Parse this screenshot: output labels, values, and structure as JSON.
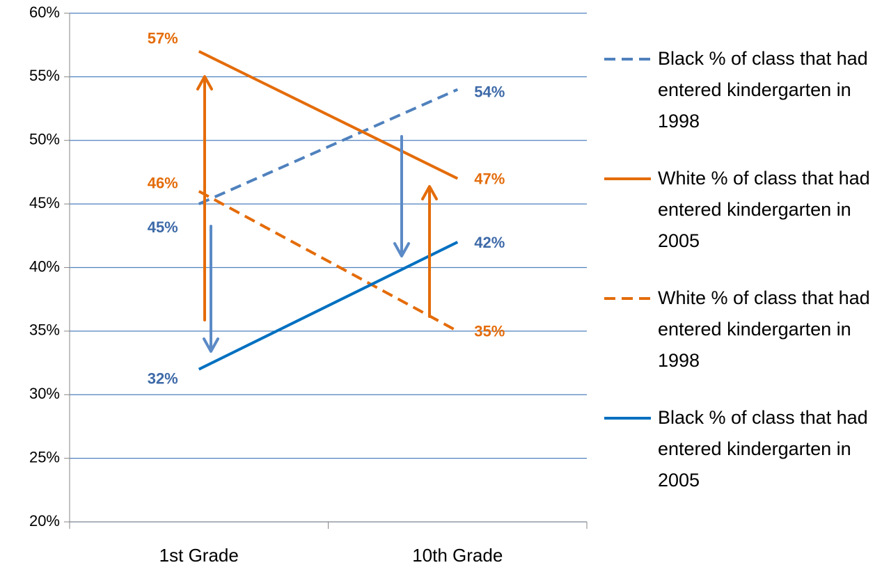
{
  "chart_data": {
    "type": "line",
    "categories": [
      "1st Grade",
      "10th Grade"
    ],
    "series": [
      {
        "name": "Black % of class that had entered kindergarten in 1998",
        "color": "#4f81bd",
        "dash": true,
        "values": [
          45,
          54
        ],
        "value_labels": [
          "45%",
          "54%"
        ],
        "label_color": "#3e6aa8"
      },
      {
        "name": "White % of class that had entered kindergarten in 2005",
        "color": "#e46c0a",
        "dash": false,
        "values": [
          57,
          47
        ],
        "value_labels": [
          "57%",
          "47%"
        ],
        "label_color": "#e46c0a"
      },
      {
        "name": "White % of class that had entered kindergarten in 1998",
        "color": "#e46c0a",
        "dash": true,
        "values": [
          46,
          35
        ],
        "value_labels": [
          "46%",
          "35%"
        ],
        "label_color": "#e46c0a"
      },
      {
        "name": "Black % of class that had entered kindergarten in 2005",
        "color": "#0070c0",
        "dash": false,
        "values": [
          32,
          42
        ],
        "value_labels": [
          "32%",
          "42%"
        ],
        "label_color": "#3e6aa8"
      }
    ],
    "ylim": [
      20,
      60
    ],
    "yticks": [
      {
        "value": 20,
        "label": "20%"
      },
      {
        "value": 25,
        "label": "25%"
      },
      {
        "value": 30,
        "label": "30%"
      },
      {
        "value": 35,
        "label": "35%"
      },
      {
        "value": 40,
        "label": "40%"
      },
      {
        "value": 45,
        "label": "45%"
      },
      {
        "value": 50,
        "label": "50%"
      },
      {
        "value": 55,
        "label": "55%"
      },
      {
        "value": 60,
        "label": "60%"
      }
    ],
    "grid": true,
    "legend": "right"
  }
}
